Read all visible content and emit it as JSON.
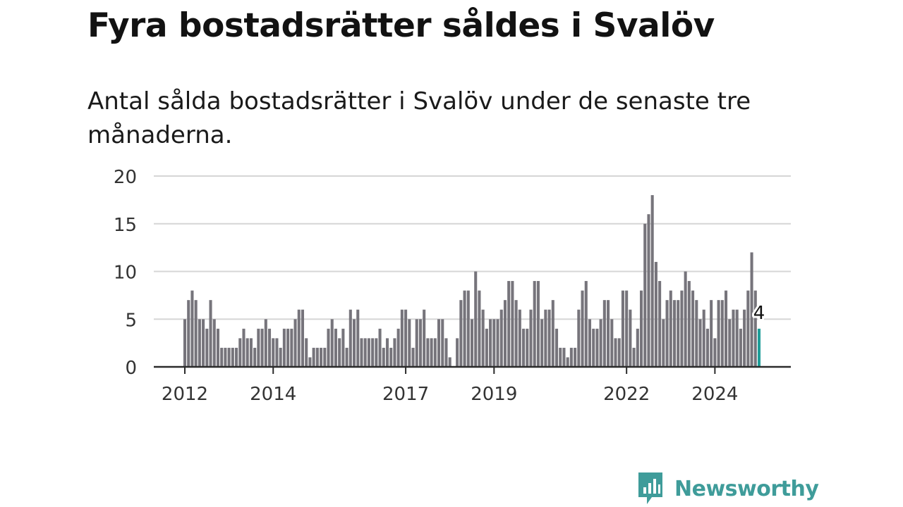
{
  "title": "Fyra bostadsrätter såldes i Svalöv",
  "subtitle": "Antal sålda bostadsrätter i Svalöv under de senaste tre månaderna.",
  "brand": {
    "name": "Newsworthy",
    "color": "#3f9c9a",
    "logo_icon": "newsworthy-chart-bubble-icon"
  },
  "chart_data": {
    "type": "bar",
    "title": "",
    "xlabel": "",
    "ylabel": "",
    "ylim": [
      0,
      20
    ],
    "yticks": [
      0,
      5,
      10,
      15,
      20
    ],
    "xticks": [
      "2012",
      "2014",
      "2017",
      "2019",
      "2022",
      "2024"
    ],
    "grid": true,
    "bar_color": "#76747b",
    "highlight_color": "#1f9e99",
    "x_start": "2012-01",
    "x_end": "2025-04",
    "last_value_label": "4",
    "series": [
      {
        "values": [
          5,
          7,
          8,
          7,
          5,
          5,
          4,
          7,
          5,
          4,
          2,
          2,
          2,
          2,
          2,
          3,
          4,
          3,
          3,
          2,
          4,
          4,
          5,
          4,
          3,
          3,
          2,
          4,
          4,
          4,
          5,
          6,
          6,
          3,
          1,
          2,
          2,
          2,
          2,
          4,
          5,
          4,
          3,
          4,
          2,
          6,
          5,
          6,
          3,
          3,
          3,
          3,
          3,
          4,
          2,
          3,
          2,
          3,
          4,
          6,
          6,
          5,
          2,
          5,
          5,
          6,
          3,
          3,
          3,
          5,
          5,
          3,
          1,
          0,
          3,
          7,
          8,
          8,
          5,
          10,
          8,
          6,
          4,
          5,
          5,
          5,
          6,
          7,
          9,
          9,
          7,
          6,
          4,
          4,
          6,
          9,
          9,
          5,
          6,
          6,
          7,
          4,
          2,
          2,
          1,
          2,
          2,
          6,
          8,
          9,
          5,
          4,
          4,
          5,
          7,
          7,
          5,
          3,
          3,
          8,
          8,
          6,
          2,
          4,
          8,
          15,
          16,
          18,
          11,
          9,
          5,
          7,
          8,
          7,
          7,
          8,
          10,
          9,
          8,
          7,
          5,
          6,
          4,
          7,
          3,
          7,
          7,
          8,
          5,
          6,
          6,
          4,
          6,
          8,
          12,
          8,
          4
        ]
      }
    ]
  }
}
